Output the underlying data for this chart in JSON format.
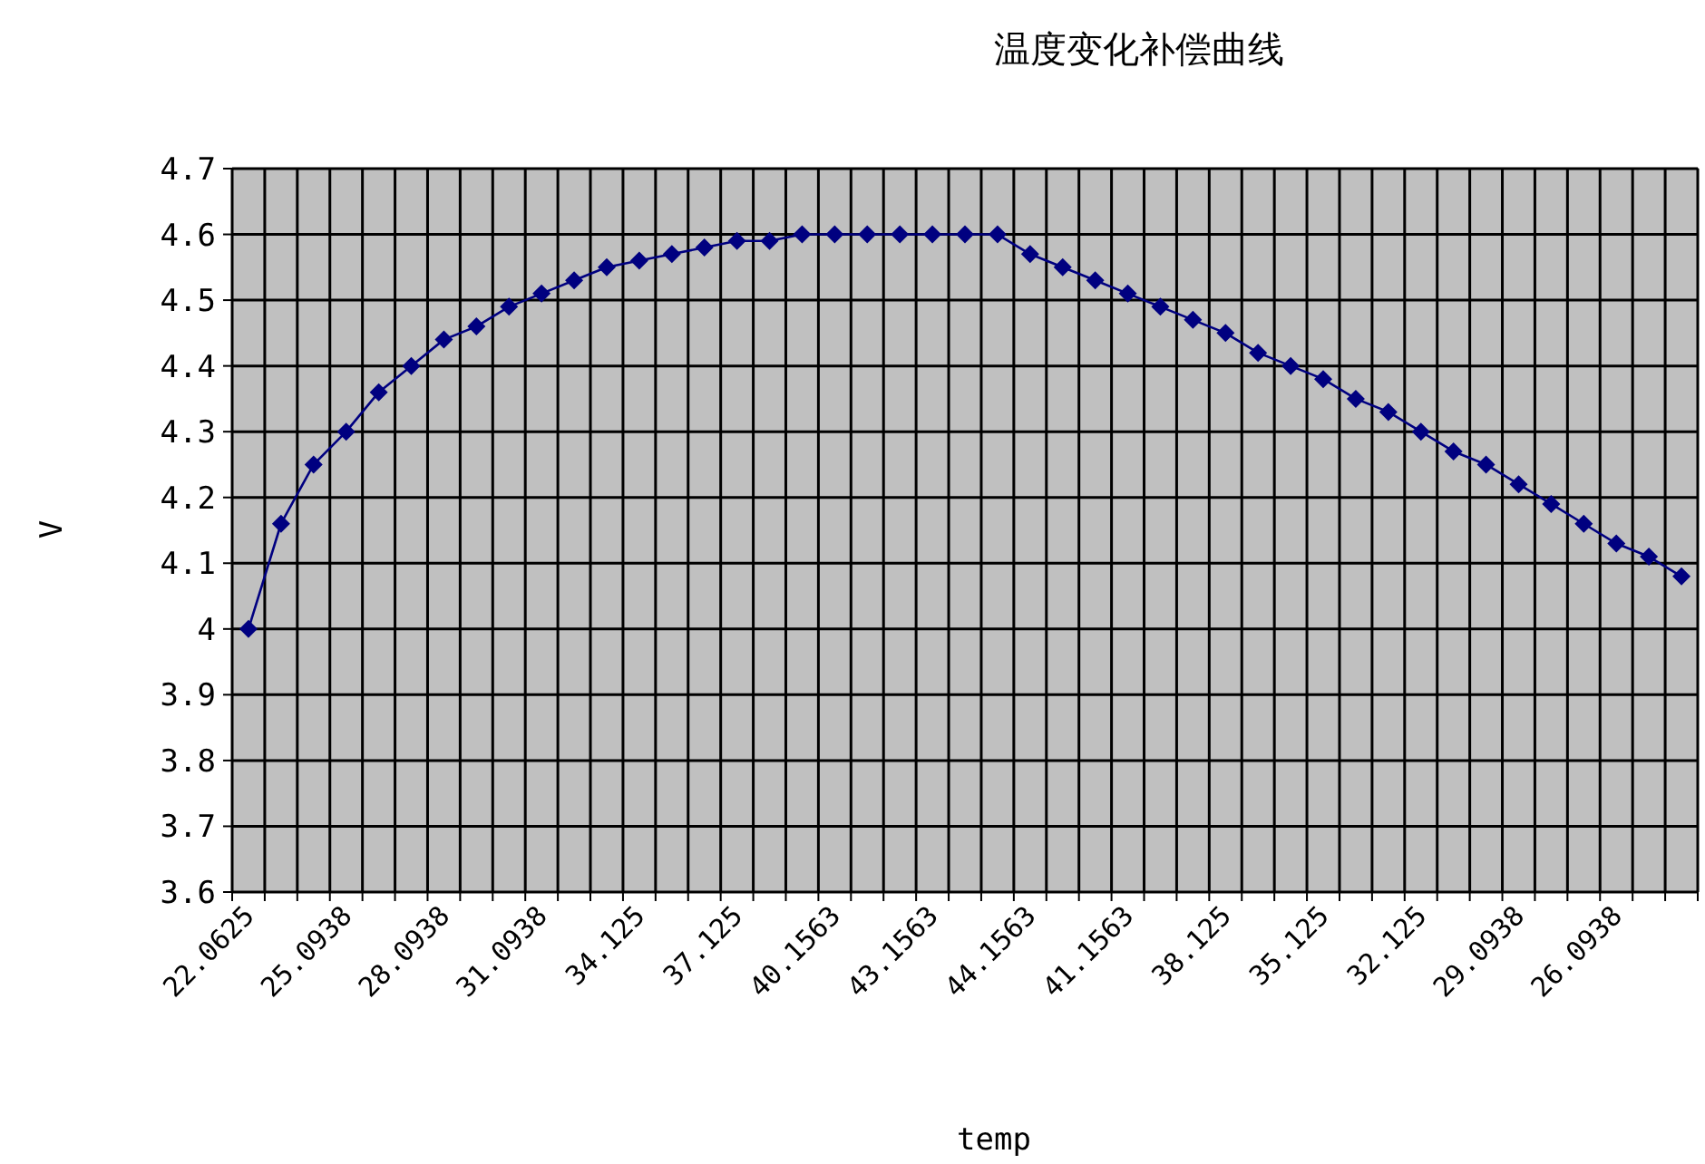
{
  "chart_data": {
    "type": "line",
    "title": "温度变化补偿曲线",
    "xlabel": "temp",
    "ylabel": "V",
    "categories": [
      "22.0625",
      null,
      null,
      "25.0938",
      null,
      null,
      "28.0938",
      null,
      null,
      "31.0938",
      null,
      null,
      "34.125",
      null,
      null,
      "37.125",
      null,
      null,
      "40.1563",
      null,
      null,
      "43.1563",
      null,
      null,
      "44.1563",
      null,
      null,
      "41.1563",
      null,
      null,
      "38.125",
      null,
      null,
      "35.125",
      null,
      null,
      "32.125",
      null,
      null,
      "29.0938",
      null,
      null,
      "26.0938",
      null,
      null
    ],
    "series": [
      {
        "color": "#000080",
        "values": [
          4.0,
          4.16,
          4.25,
          4.3,
          4.36,
          4.4,
          4.44,
          4.46,
          4.49,
          4.51,
          4.53,
          4.55,
          4.56,
          4.57,
          4.58,
          4.59,
          4.59,
          4.6,
          4.6,
          4.6,
          4.6,
          4.6,
          4.6,
          4.6,
          4.57,
          4.55,
          4.53,
          4.51,
          4.49,
          4.47,
          4.45,
          4.42,
          4.4,
          4.38,
          4.35,
          4.33,
          4.3,
          4.27,
          4.25,
          4.22,
          4.19,
          4.16,
          4.13,
          4.11,
          4.08
        ]
      }
    ],
    "ylim": [
      3.6,
      4.7
    ],
    "yticks": [
      3.6,
      3.7,
      3.8,
      3.9,
      4,
      4.1,
      4.2,
      4.3,
      4.4,
      4.5,
      4.6,
      4.7
    ],
    "grid": true,
    "marker": "diamond",
    "line_style": "solid"
  }
}
